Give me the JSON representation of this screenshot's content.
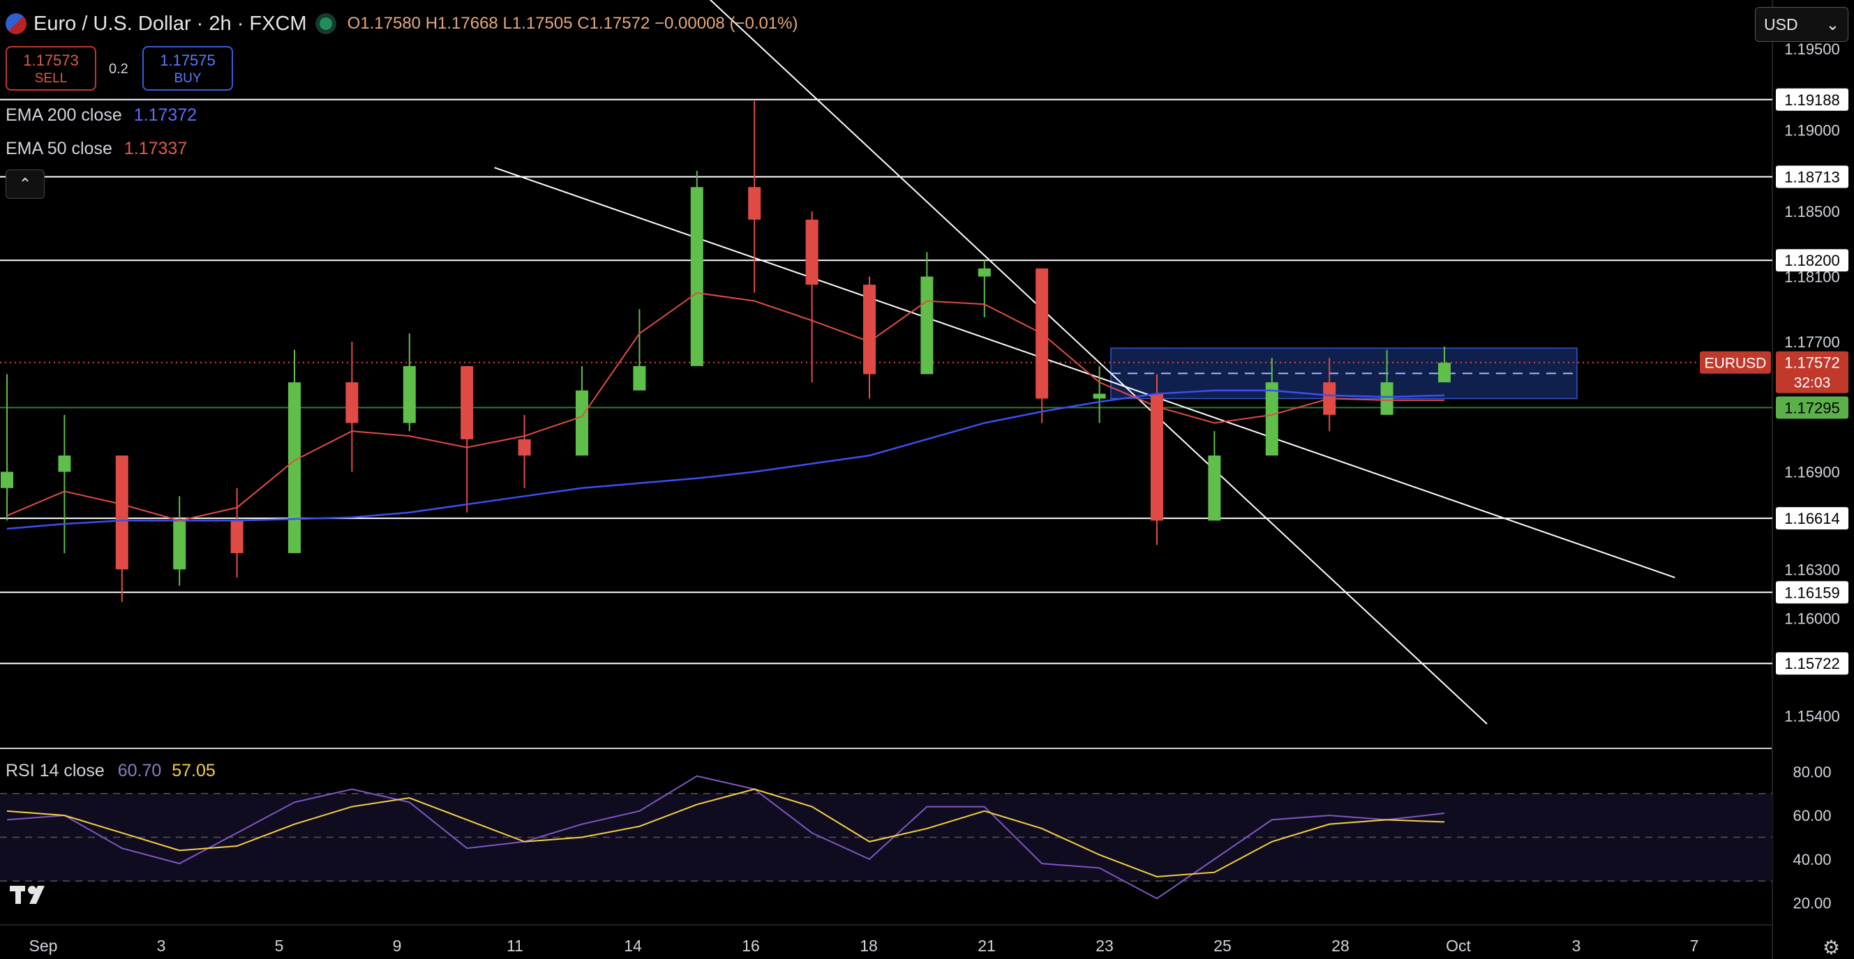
{
  "header": {
    "symbol": "Euro / U.S. Dollar · 2h · FXCM",
    "open": "O1.17580",
    "high": "H1.17668",
    "low": "L1.17505",
    "close": "C1.17572",
    "change": "−0.00008 (−0.01%)"
  },
  "trade": {
    "sell_price": "1.17573",
    "sell_label": "SELL",
    "buy_price": "1.17575",
    "buy_label": "BUY",
    "spread": "0.2"
  },
  "legend": {
    "ema200_name": "EMA 200 close",
    "ema200_value": "1.17372",
    "ema50_name": "EMA 50 close",
    "ema50_value": "1.17337"
  },
  "currency_select": "USD",
  "collapse_glyph": "⌃",
  "settings_icon": "gear-icon",
  "colors": {
    "up": "#5fbf4a",
    "down": "#e04c45",
    "ema200": "#3b4ff0",
    "ema50": "#e04c45",
    "rsi": "#7e57c2",
    "rsi_ma": "#f5d142",
    "zone": "#1e3a8a",
    "hline": "#ffffff"
  },
  "chart_data": [
    {
      "type": "candlestick",
      "title": "Euro / U.S. Dollar · 2h · FXCM",
      "x_ticks": [
        "Sep",
        "3",
        "5",
        "9",
        "11",
        "14",
        "16",
        "18",
        "21",
        "23",
        "25",
        "28",
        "Oct",
        "3",
        "7"
      ],
      "y_ticks": [
        "1.19500",
        "1.19000",
        "1.18500",
        "1.18100",
        "1.17700",
        "1.16900",
        "1.16300",
        "1.16000",
        "1.15400"
      ],
      "ylim": [
        1.152,
        1.198
      ],
      "horizontal_levels": [
        "1.19188",
        "1.18713",
        "1.18200",
        "1.17295",
        "1.16614",
        "1.16159",
        "1.15722"
      ],
      "symbol_tag": "EURUSD",
      "last_price": "1.17572",
      "countdown": "32:03",
      "zone": {
        "top": 1.1766,
        "bottom": 1.1735
      },
      "trend_channel": [
        {
          "from": [
            0.391,
            1.199
          ],
          "to": [
            0.839,
            1.1535
          ]
        },
        {
          "from": [
            0.279,
            1.1877
          ],
          "to": [
            0.945,
            1.1625
          ]
        }
      ],
      "ema200": [
        1.1655,
        1.1658,
        1.166,
        1.166,
        1.166,
        1.1661,
        1.1662,
        1.1665,
        1.167,
        1.1675,
        1.168,
        1.1683,
        1.1686,
        1.169,
        1.1695,
        1.17,
        1.171,
        1.172,
        1.1727,
        1.1733,
        1.1738,
        1.174,
        1.174,
        1.1737,
        1.1736,
        1.1737
      ],
      "ema50": [
        1.1663,
        1.1678,
        1.167,
        1.166,
        1.1668,
        1.1697,
        1.1715,
        1.1712,
        1.1705,
        1.1712,
        1.1724,
        1.1775,
        1.18,
        1.1795,
        1.1783,
        1.177,
        1.1795,
        1.1793,
        1.1775,
        1.1745,
        1.173,
        1.172,
        1.1725,
        1.1735,
        1.1734,
        1.1734
      ],
      "close": [
        1.169,
        1.17,
        1.163,
        1.166,
        1.164,
        1.1745,
        1.172,
        1.1755,
        1.171,
        1.17,
        1.174,
        1.1755,
        1.1865,
        1.1845,
        1.1805,
        1.175,
        1.181,
        1.1815,
        1.1735,
        1.1738,
        1.166,
        1.17,
        1.1745,
        1.1725,
        1.1745,
        1.1757
      ],
      "high": [
        1.175,
        1.1725,
        1.1675,
        1.1675,
        1.168,
        1.1765,
        1.177,
        1.1775,
        1.1755,
        1.1725,
        1.1755,
        1.179,
        1.1875,
        1.1918,
        1.185,
        1.181,
        1.1825,
        1.182,
        1.1805,
        1.1755,
        1.175,
        1.1715,
        1.176,
        1.176,
        1.1765,
        1.1767
      ],
      "low": [
        1.166,
        1.164,
        1.161,
        1.162,
        1.1625,
        1.1685,
        1.169,
        1.1715,
        1.1665,
        1.168,
        1.17,
        1.175,
        1.182,
        1.18,
        1.1745,
        1.1735,
        1.1755,
        1.1785,
        1.172,
        1.172,
        1.1645,
        1.1665,
        1.1715,
        1.1715,
        1.1725,
        1.175
      ]
    },
    {
      "type": "line",
      "title": "RSI 14 close",
      "rsi_value": "60.70",
      "rsi_ma_value": "57.05",
      "y_ticks": [
        "80.00",
        "60.00",
        "40.00",
        "20.00"
      ],
      "ylim": [
        10,
        90
      ],
      "band": [
        30,
        70
      ],
      "rsi": [
        58,
        60,
        45,
        38,
        52,
        66,
        72,
        66,
        45,
        48,
        56,
        62,
        78,
        72,
        52,
        40,
        64,
        64,
        38,
        36,
        22,
        40,
        58,
        60,
        58,
        61
      ],
      "rsi_ma": [
        62,
        60,
        52,
        44,
        46,
        56,
        64,
        68,
        58,
        48,
        50,
        55,
        65,
        72,
        64,
        48,
        54,
        62,
        54,
        42,
        32,
        34,
        48,
        56,
        58,
        57
      ]
    }
  ]
}
